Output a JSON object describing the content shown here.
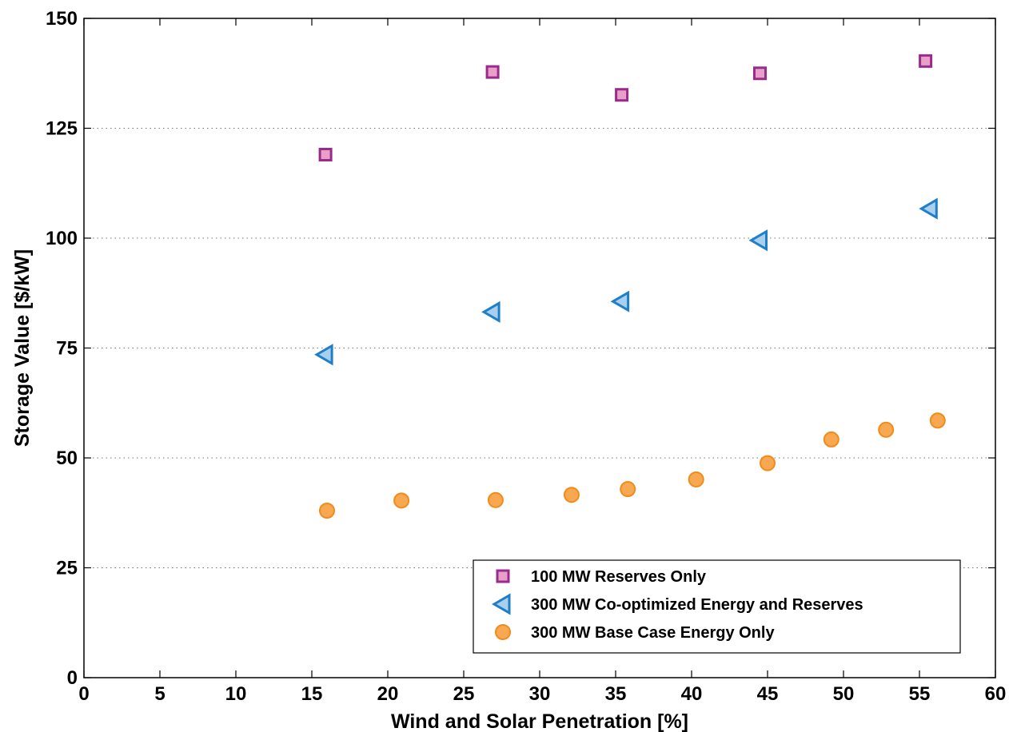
{
  "chart_data": {
    "type": "scatter",
    "title": "",
    "xlabel": "Wind and Solar Penetration [%]",
    "ylabel": "Storage Value [$/kW]",
    "xlim": [
      0,
      60
    ],
    "ylim": [
      0,
      150
    ],
    "xticks": [
      "0",
      "5",
      "10",
      "15",
      "20",
      "25",
      "30",
      "35",
      "40",
      "45",
      "50",
      "55",
      "60"
    ],
    "yticks": [
      "0",
      "25",
      "50",
      "75",
      "100",
      "125",
      "150"
    ],
    "grid": "horizontal dotted",
    "legend_position": "bottom-right",
    "series": [
      {
        "name": "100 MW Reserves Only",
        "marker": "square",
        "fill": "#e8a0c8",
        "stroke": "#9a2b8c",
        "points": [
          [
            15.9,
            119
          ],
          [
            26.9,
            137.8
          ],
          [
            35.4,
            132.6
          ],
          [
            44.5,
            137.5
          ],
          [
            55.4,
            140.3
          ]
        ]
      },
      {
        "name": "300 MW Co-optimized Energy and Reserves",
        "marker": "triangle-left",
        "fill": "#a8d0ee",
        "stroke": "#1f7ec8",
        "points": [
          [
            15.9,
            73.5
          ],
          [
            26.9,
            83.2
          ],
          [
            35.4,
            85.6
          ],
          [
            44.5,
            99.5
          ],
          [
            55.7,
            106.7
          ]
        ]
      },
      {
        "name": "300 MW Base Case Energy Only",
        "marker": "circle",
        "fill": "#f8a850",
        "stroke": "#f08c1c",
        "points": [
          [
            16.0,
            38.0
          ],
          [
            20.9,
            40.3
          ],
          [
            27.1,
            40.4
          ],
          [
            32.1,
            41.6
          ],
          [
            35.8,
            42.9
          ],
          [
            40.3,
            45.1
          ],
          [
            45.0,
            48.8
          ],
          [
            49.2,
            54.2
          ],
          [
            52.8,
            56.4
          ],
          [
            56.2,
            58.5
          ]
        ]
      }
    ]
  }
}
